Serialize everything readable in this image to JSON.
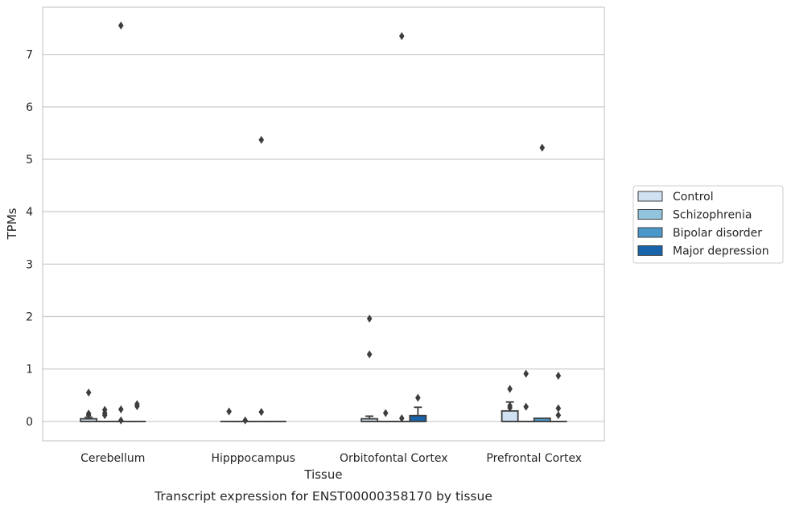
{
  "chart_data": {
    "type": "box",
    "title": "",
    "caption": "Transcript expression for ENST00000358170 by tissue",
    "xlabel": "Tissue",
    "ylabel": "TPMs",
    "ylim": [
      -0.37,
      7.9
    ],
    "yticks": [
      0,
      1,
      2,
      3,
      4,
      5,
      6,
      7
    ],
    "grid": "horizontal",
    "legend_position": "right",
    "categories": [
      "Cerebellum",
      "Hipppocampus",
      "Orbitofontal Cortex",
      "Prefrontal Cortex"
    ],
    "series": [
      {
        "name": "Control",
        "color": "#cfe1f2",
        "boxes": [
          {
            "q1": 0,
            "median": 0,
            "q3": 0.05,
            "whisker_low": 0,
            "whisker_high": 0.08,
            "outliers": [
              0.55,
              0.15,
              0.12
            ]
          },
          {
            "q1": 0,
            "median": 0,
            "q3": 0,
            "whisker_low": 0,
            "whisker_high": 0,
            "outliers": [
              0.19
            ]
          },
          {
            "q1": 0,
            "median": 0,
            "q3": 0.05,
            "whisker_low": 0,
            "whisker_high": 0.1,
            "outliers": [
              1.96,
              1.28
            ]
          },
          {
            "q1": 0,
            "median": 0,
            "q3": 0.2,
            "whisker_low": 0,
            "whisker_high": 0.37,
            "outliers": [
              0.62,
              0.3,
              0.26
            ]
          }
        ]
      },
      {
        "name": "Schizophrenia",
        "color": "#93c4de",
        "boxes": [
          {
            "q1": 0,
            "median": 0,
            "q3": 0,
            "whisker_low": 0,
            "whisker_high": 0,
            "outliers": [
              0.22,
              0.16,
              0.12
            ]
          },
          {
            "q1": 0,
            "median": 0,
            "q3": 0,
            "whisker_low": 0,
            "whisker_high": 0,
            "outliers": [
              0.02
            ]
          },
          {
            "q1": 0,
            "median": 0,
            "q3": 0,
            "whisker_low": 0,
            "whisker_high": 0,
            "outliers": [
              0.16
            ]
          },
          {
            "q1": 0,
            "median": 0,
            "q3": 0,
            "whisker_low": 0,
            "whisker_high": 0,
            "outliers": [
              0.91,
              0.28
            ]
          }
        ]
      },
      {
        "name": "Bipolar disorder",
        "color": "#4a98c9",
        "boxes": [
          {
            "q1": 0,
            "median": 0,
            "q3": 0,
            "whisker_low": 0,
            "whisker_high": 0,
            "outliers": [
              7.55,
              0.23,
              0.02
            ]
          },
          {
            "q1": 0,
            "median": 0,
            "q3": 0,
            "whisker_low": 0,
            "whisker_high": 0,
            "outliers": [
              5.37,
              0.18
            ]
          },
          {
            "q1": 0,
            "median": 0,
            "q3": 0,
            "whisker_low": 0,
            "whisker_high": 0,
            "outliers": [
              7.35,
              0.06
            ]
          },
          {
            "q1": 0,
            "median": 0,
            "q3": 0.06,
            "whisker_low": 0,
            "whisker_high": 0.06,
            "outliers": [
              5.22
            ]
          }
        ]
      },
      {
        "name": "Major depression",
        "color": "#1764ab",
        "boxes": [
          {
            "q1": 0,
            "median": 0,
            "q3": 0,
            "whisker_low": 0,
            "whisker_high": 0,
            "outliers": [
              0.33,
              0.29
            ]
          },
          {
            "q1": 0,
            "median": 0,
            "q3": 0,
            "whisker_low": 0,
            "whisker_high": 0,
            "outliers": []
          },
          {
            "q1": 0,
            "median": 0,
            "q3": 0.11,
            "whisker_low": 0,
            "whisker_high": 0.27,
            "outliers": [
              0.45
            ]
          },
          {
            "q1": 0,
            "median": 0,
            "q3": 0,
            "whisker_low": 0,
            "whisker_high": 0,
            "outliers": [
              0.87,
              0.25,
              0.12
            ]
          }
        ]
      }
    ]
  }
}
